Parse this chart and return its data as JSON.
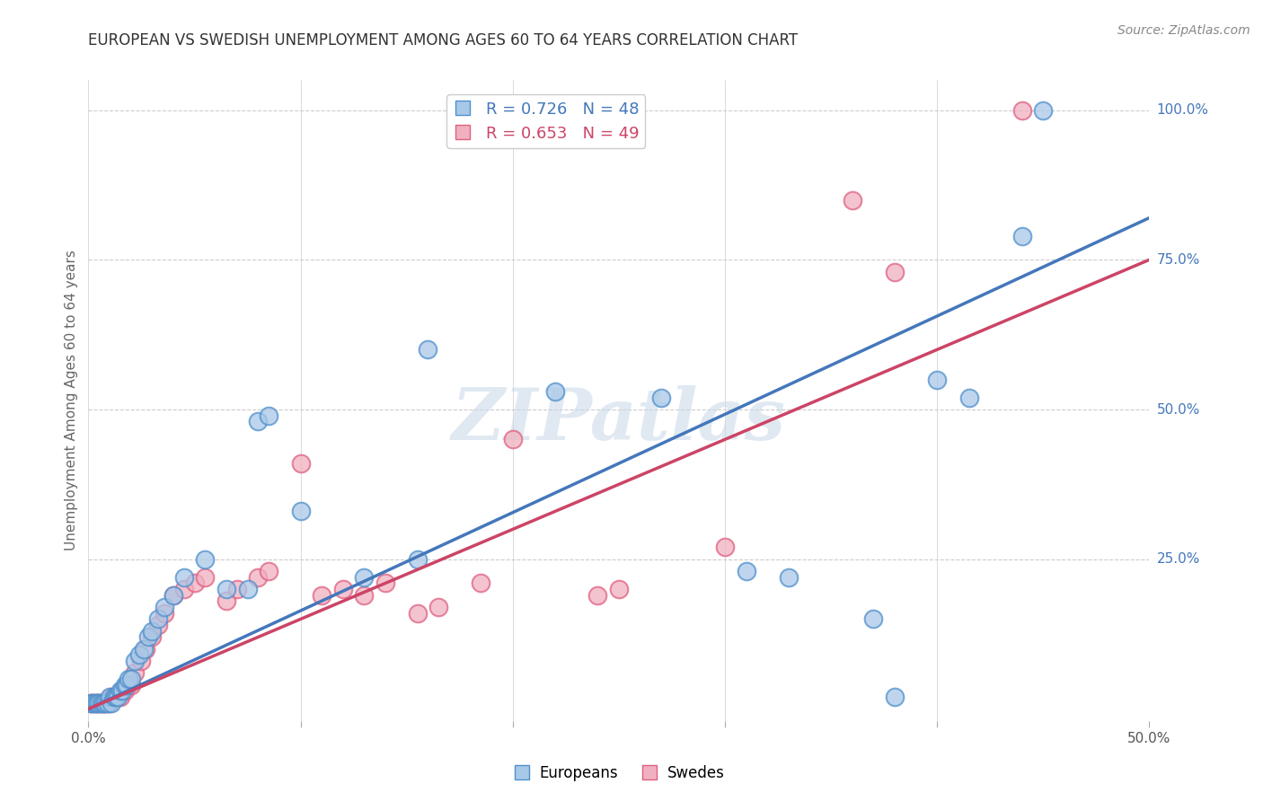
{
  "title": "EUROPEAN VS SWEDISH UNEMPLOYMENT AMONG AGES 60 TO 64 YEARS CORRELATION CHART",
  "source": "Source: ZipAtlas.com",
  "ylabel": "Unemployment Among Ages 60 to 64 years",
  "legend_blue_r": "R = 0.726",
  "legend_blue_n": "N = 48",
  "legend_pink_r": "R = 0.653",
  "legend_pink_n": "N = 49",
  "legend_label_blue": "Europeans",
  "legend_label_pink": "Swedes",
  "blue_fill": "#a8c8e8",
  "pink_fill": "#f0b0c0",
  "blue_edge": "#5090cc",
  "pink_edge": "#e06080",
  "blue_line_color": "#4477bb",
  "pink_line_color": "#cc4466",
  "watermark": "ZIPatlas",
  "background_color": "#ffffff",
  "grid_color": "#cccccc",
  "xlim": [
    0.0,
    0.5
  ],
  "ylim": [
    -0.02,
    1.05
  ],
  "blue_scatter_x": [
    0.001,
    0.002,
    0.003,
    0.004,
    0.005,
    0.006,
    0.007,
    0.008,
    0.009,
    0.01,
    0.011,
    0.012,
    0.013,
    0.014,
    0.015,
    0.016,
    0.017,
    0.018,
    0.019,
    0.02,
    0.022,
    0.024,
    0.026,
    0.028,
    0.03,
    0.033,
    0.036,
    0.04,
    0.045,
    0.055,
    0.065,
    0.075,
    0.08,
    0.085,
    0.1,
    0.13,
    0.155,
    0.16,
    0.22,
    0.27,
    0.31,
    0.33,
    0.37,
    0.38,
    0.4,
    0.415,
    0.44,
    0.45
  ],
  "blue_scatter_y": [
    0.01,
    0.01,
    0.01,
    0.01,
    0.01,
    0.01,
    0.01,
    0.01,
    0.01,
    0.02,
    0.01,
    0.02,
    0.02,
    0.02,
    0.03,
    0.03,
    0.04,
    0.04,
    0.05,
    0.05,
    0.08,
    0.09,
    0.1,
    0.12,
    0.13,
    0.15,
    0.17,
    0.19,
    0.22,
    0.25,
    0.2,
    0.2,
    0.48,
    0.49,
    0.33,
    0.22,
    0.25,
    0.6,
    0.53,
    0.52,
    0.23,
    0.22,
    0.15,
    0.02,
    0.55,
    0.52,
    0.79,
    1.0
  ],
  "pink_scatter_x": [
    0.001,
    0.002,
    0.003,
    0.004,
    0.005,
    0.006,
    0.007,
    0.008,
    0.009,
    0.01,
    0.011,
    0.012,
    0.013,
    0.014,
    0.015,
    0.016,
    0.017,
    0.018,
    0.019,
    0.02,
    0.022,
    0.025,
    0.027,
    0.03,
    0.033,
    0.036,
    0.04,
    0.045,
    0.05,
    0.055,
    0.065,
    0.07,
    0.08,
    0.085,
    0.1,
    0.11,
    0.12,
    0.13,
    0.14,
    0.155,
    0.165,
    0.185,
    0.2,
    0.24,
    0.25,
    0.3,
    0.36,
    0.38,
    0.44
  ],
  "pink_scatter_y": [
    0.01,
    0.01,
    0.01,
    0.01,
    0.01,
    0.01,
    0.01,
    0.01,
    0.01,
    0.01,
    0.02,
    0.02,
    0.02,
    0.02,
    0.02,
    0.03,
    0.03,
    0.04,
    0.04,
    0.04,
    0.06,
    0.08,
    0.1,
    0.12,
    0.14,
    0.16,
    0.19,
    0.2,
    0.21,
    0.22,
    0.18,
    0.2,
    0.22,
    0.23,
    0.41,
    0.19,
    0.2,
    0.19,
    0.21,
    0.16,
    0.17,
    0.21,
    0.45,
    0.19,
    0.2,
    0.27,
    0.85,
    0.73,
    1.0
  ],
  "blue_line_x": [
    0.0,
    0.5
  ],
  "blue_line_y": [
    0.0,
    0.82
  ],
  "pink_line_x": [
    0.0,
    0.5
  ],
  "pink_line_y": [
    0.0,
    0.75
  ]
}
